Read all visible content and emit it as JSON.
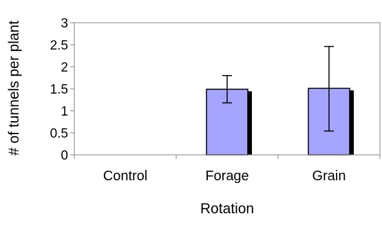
{
  "chart_data": {
    "type": "bar",
    "categories": [
      "Control",
      "Forage",
      "Grain"
    ],
    "values": [
      0,
      1.49,
      1.51
    ],
    "error_upper": [
      0,
      1.8,
      2.46
    ],
    "error_lower": [
      0,
      1.18,
      0.54
    ],
    "title": "",
    "xlabel": "Rotation",
    "ylabel": "# of tunnels per plant",
    "ylim": [
      0,
      3
    ],
    "yticks": [
      "0",
      "0.5",
      "1",
      "1.5",
      "2",
      "2.5",
      "3"
    ],
    "grid": false,
    "legend": "none",
    "colors": {
      "bar": "#a5a5ff",
      "bar_edge": "#000000",
      "shadow": "#000000",
      "axis": "#808080"
    }
  }
}
